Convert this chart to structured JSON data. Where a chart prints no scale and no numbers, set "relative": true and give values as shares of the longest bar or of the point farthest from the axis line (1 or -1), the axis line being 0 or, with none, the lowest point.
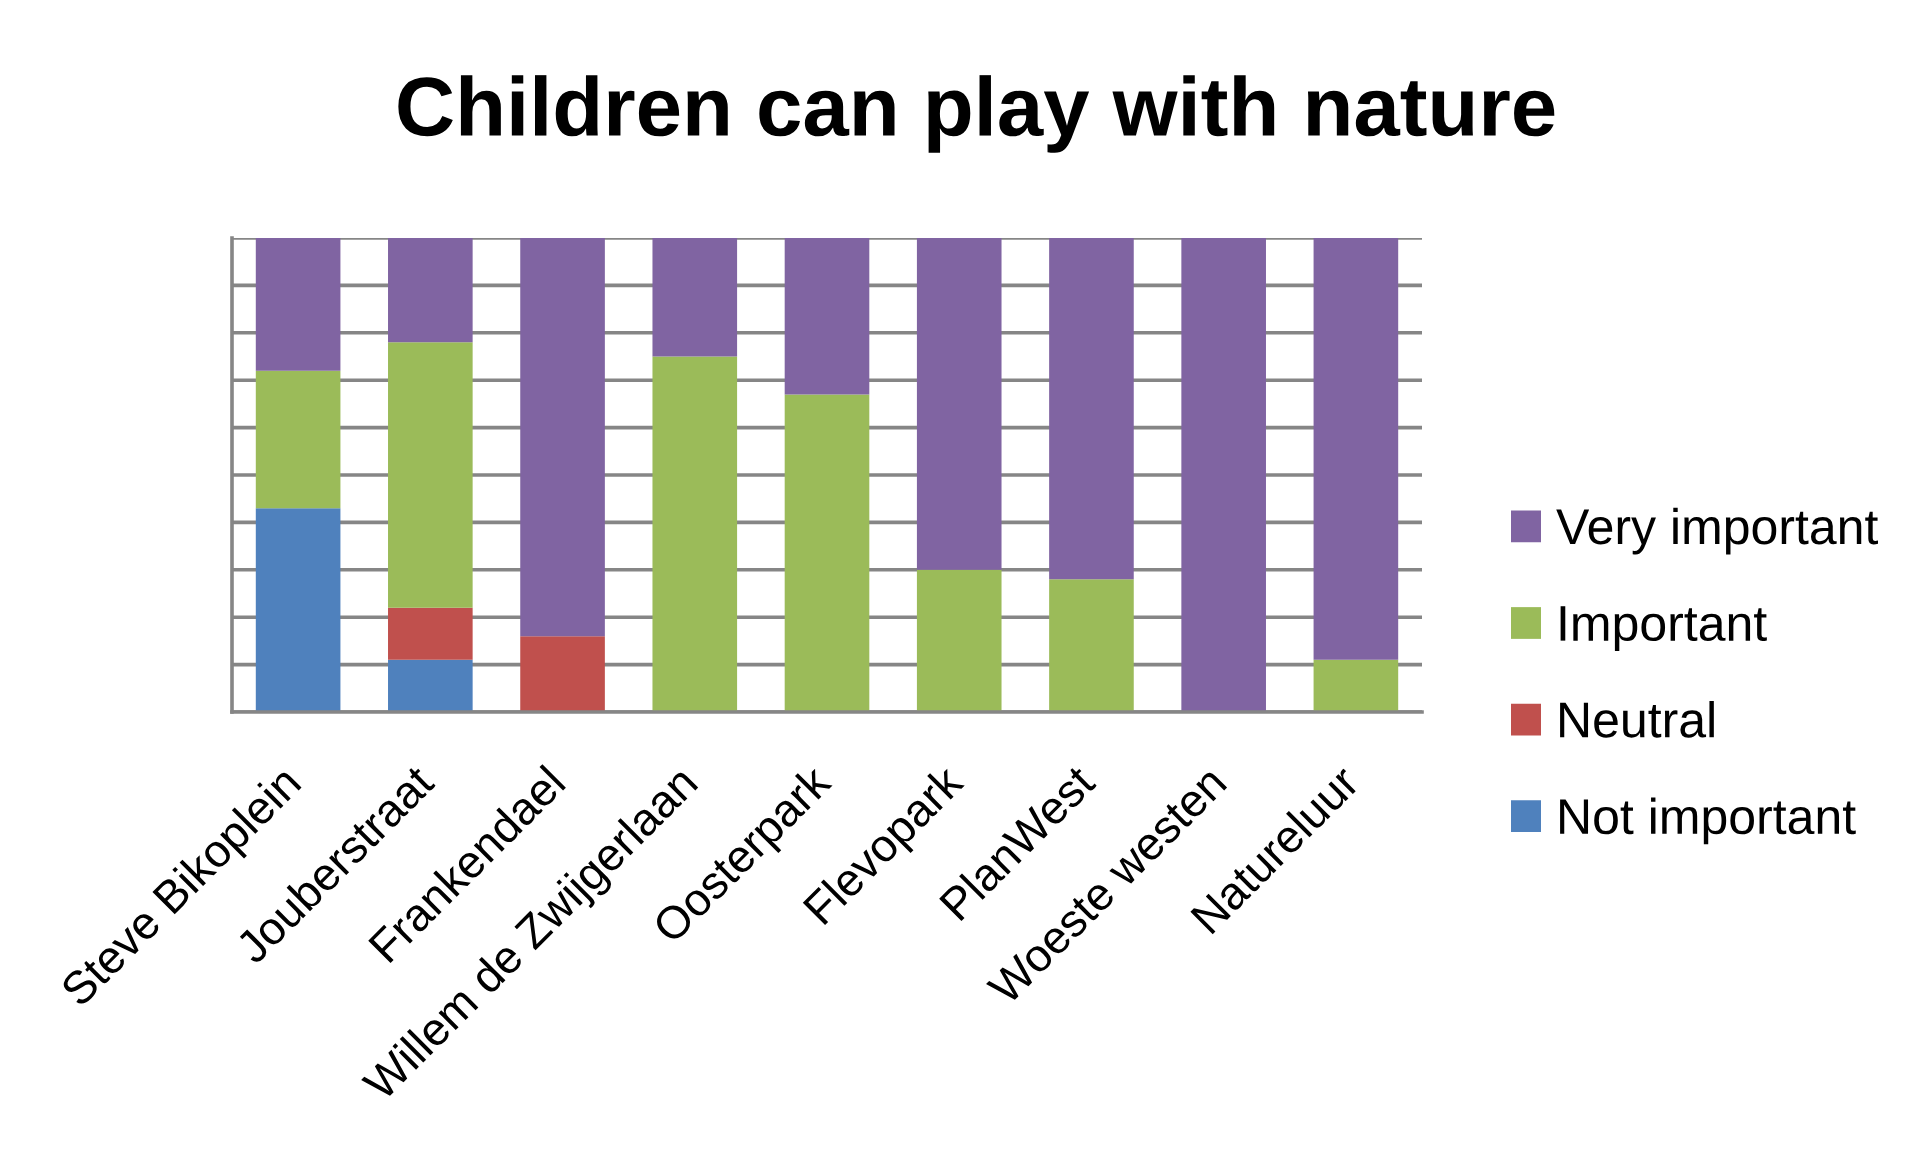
{
  "chart_data": {
    "type": "bar",
    "title": "Children can play with nature",
    "categories": [
      "Steve Bikoplein",
      "Jouberstraat",
      "Frankendael",
      "Willem de Zwijgerlaan",
      "Oosterpark",
      "Flevopark",
      "PlanWest",
      "Woeste westen",
      "Natureluur"
    ],
    "stacked": true,
    "relative": true,
    "grid": "y",
    "legend": "right",
    "series": [
      {
        "name": "Not important",
        "color": "#4f81bd",
        "values": [
          0.43,
          0.11,
          null,
          null,
          null,
          null,
          null,
          null,
          null
        ]
      },
      {
        "name": "Neutral",
        "color": "#c0504d",
        "values": [
          null,
          0.11,
          0.16,
          null,
          null,
          null,
          null,
          null,
          null
        ]
      },
      {
        "name": "Important",
        "color": "#9bbb59",
        "values": [
          0.29,
          0.56,
          null,
          0.75,
          0.67,
          0.3,
          0.28,
          null,
          0.11
        ]
      },
      {
        "name": "Very important",
        "color": "#8064a2",
        "values": [
          0.28,
          0.22,
          0.84,
          0.25,
          0.33,
          0.7,
          0.72,
          1,
          0.89
        ]
      }
    ]
  }
}
